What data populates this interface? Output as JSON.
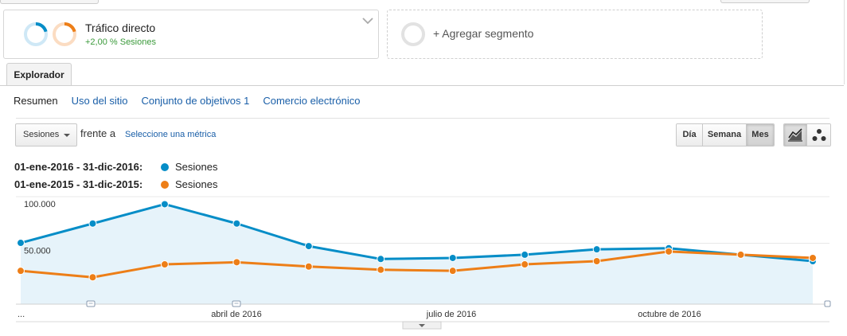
{
  "segments": {
    "primary": {
      "title": "Tráfico directo",
      "subtitle": "+2,00 % Sesiones"
    },
    "add_label": "+ Agregar segmento"
  },
  "tabs": {
    "explorer": "Explorador"
  },
  "subnav": {
    "items": [
      {
        "label": "Resumen",
        "active": true
      },
      {
        "label": "Uso del sitio",
        "active": false
      },
      {
        "label": "Conjunto de objetivos 1",
        "active": false
      },
      {
        "label": "Comercio electrónico",
        "active": false
      }
    ]
  },
  "controls": {
    "metric_selected": "Sesiones",
    "versus_label": "frente a",
    "select_metric_link": "Seleccione una métrica",
    "period_buttons": [
      {
        "label": "Día",
        "active": false
      },
      {
        "label": "Semana",
        "active": false
      },
      {
        "label": "Mes",
        "active": true
      }
    ],
    "view_buttons": [
      {
        "icon": "line-chart-icon",
        "active": true
      },
      {
        "icon": "motion-chart-icon",
        "active": false
      }
    ]
  },
  "legend": [
    {
      "range": "01-ene-2016 - 31-dic-2016:",
      "series": "Sesiones",
      "color": "#058dc7"
    },
    {
      "range": "01-ene-2015 - 31-dic-2015:",
      "series": "Sesiones",
      "color": "#ed7e17"
    }
  ],
  "colors": {
    "series_2016": "#058dc7",
    "series_2015": "#ed7e17",
    "area_fill": "#e6f3fa",
    "link": "#1a5fa8",
    "positive": "#3b9a3b"
  },
  "chart_data": {
    "type": "line",
    "x": [
      "ene 2016",
      "feb 2016",
      "mar 2016",
      "abr 2016",
      "may 2016",
      "jun 2016",
      "jul 2016",
      "ago 2016",
      "sep 2016",
      "oct 2016",
      "nov 2016",
      "dic 2016"
    ],
    "x_tick_labels": [
      "...",
      "abril de 2016",
      "julio de 2016",
      "octubre de 2016"
    ],
    "y_tick_labels": [
      "100.000",
      "50.000"
    ],
    "ylim": [
      0,
      100000
    ],
    "series": [
      {
        "name": "Sesiones",
        "period": "2016",
        "values": [
          57000,
          75000,
          93000,
          75000,
          54000,
          42000,
          43000,
          46000,
          51000,
          52000,
          46000,
          40000
        ],
        "area": true
      },
      {
        "name": "Sesiones",
        "period": "2015",
        "values": [
          31000,
          25000,
          37000,
          39000,
          35000,
          32000,
          31000,
          37000,
          40000,
          49000,
          46000,
          43000
        ],
        "area": false
      }
    ],
    "grid": true
  }
}
